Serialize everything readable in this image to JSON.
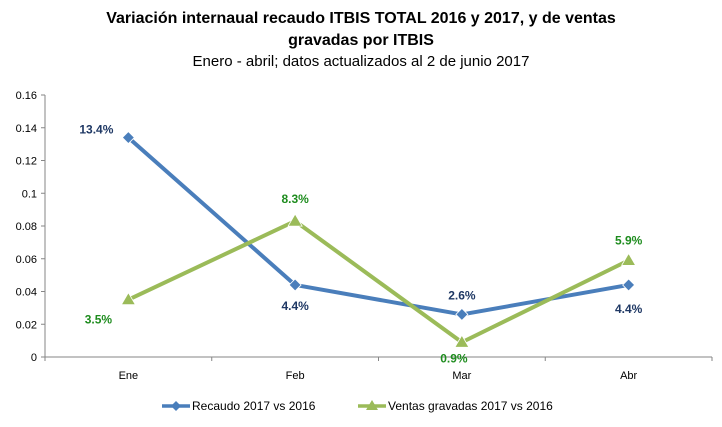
{
  "chart_data": {
    "type": "line",
    "title_line1": "Variación internaual recaudo ITBIS TOTAL 2016 y 2017, y de ventas",
    "title_line2": "gravadas por ITBIS",
    "subtitle": "Enero - abril; datos actualizados al 2 de junio 2017",
    "categories": [
      "Ene",
      "Feb",
      "Mar",
      "Abr"
    ],
    "ylim": [
      0,
      0.16
    ],
    "yticks": [
      0,
      0.02,
      0.04,
      0.06,
      0.08,
      0.1,
      0.12,
      0.14,
      0.16
    ],
    "ytick_labels": [
      "0",
      "0.02",
      "0.04",
      "0.06",
      "0.08",
      "0.1",
      "0.12",
      "0.14",
      "0.16"
    ],
    "grid": false,
    "legend_position": "bottom",
    "series": [
      {
        "name": "Recaudo 2017 vs 2016",
        "color": "#4a7ebb",
        "marker": "diamond",
        "values": [
          0.134,
          0.044,
          0.026,
          0.044
        ],
        "labels": [
          "13.4%",
          "4.4%",
          "2.6%",
          "4.4%"
        ],
        "label_color": "#1f3864"
      },
      {
        "name": "Ventas gravadas 2017 vs 2016",
        "color": "#9bbb59",
        "marker": "triangle",
        "values": [
          0.035,
          0.083,
          0.009,
          0.059
        ],
        "labels": [
          "3.5%",
          "8.3%",
          "0.9%",
          "5.9%"
        ],
        "label_color": "#1e8c1e"
      }
    ]
  }
}
